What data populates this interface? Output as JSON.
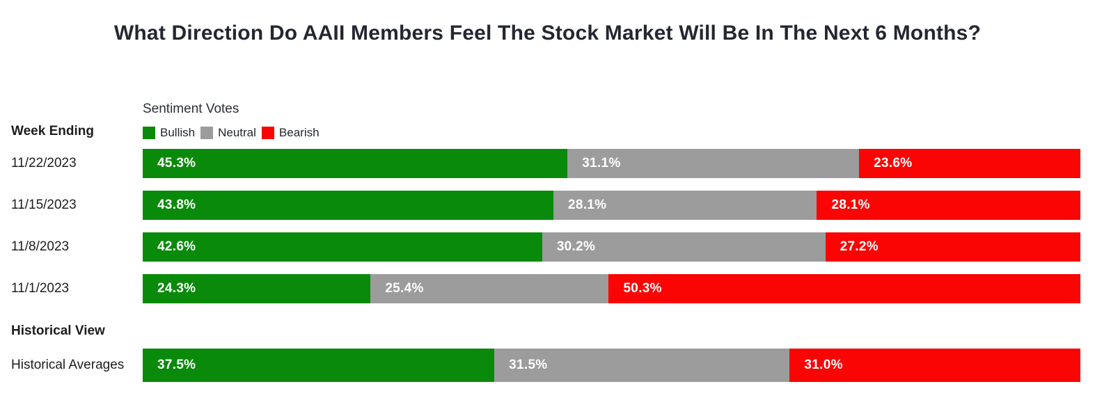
{
  "title": "What Direction Do AAII Members Feel The Stock Market Will Be In The Next 6 Months?",
  "header": {
    "week_ending_label": "Week Ending",
    "legend_title": "Sentiment Votes"
  },
  "legend": {
    "position": "top-left",
    "items": [
      {
        "label": "Bullish",
        "color": "#0a8a0a"
      },
      {
        "label": "Neutral",
        "color": "#9c9c9c"
      },
      {
        "label": "Bearish",
        "color": "#fb0404"
      }
    ]
  },
  "sections": {
    "historical_view_label": "Historical View"
  },
  "chart_data": {
    "type": "bar",
    "variant": "stacked-horizontal-100percent",
    "title": "What Direction Do AAII Members Feel The Stock Market Will Be In The Next 6 Months?",
    "legend_title": "Sentiment Votes",
    "xlabel": "",
    "ylabel": "Week Ending",
    "xlim": [
      0,
      100
    ],
    "value_suffix": "%",
    "grid": false,
    "categories": [
      "11/22/2023",
      "11/15/2023",
      "11/8/2023",
      "11/1/2023"
    ],
    "series": [
      {
        "name": "Bullish",
        "color": "#0a8a0a",
        "values": [
          45.3,
          43.8,
          42.6,
          24.3
        ]
      },
      {
        "name": "Neutral",
        "color": "#9c9c9c",
        "values": [
          31.1,
          28.1,
          30.2,
          25.4
        ]
      },
      {
        "name": "Bearish",
        "color": "#fb0404",
        "values": [
          23.6,
          28.1,
          27.2,
          50.3
        ]
      }
    ],
    "historical": {
      "section_label": "Historical View",
      "row_label": "Historical Averages",
      "values": [
        37.5,
        31.5,
        31.0
      ]
    }
  }
}
